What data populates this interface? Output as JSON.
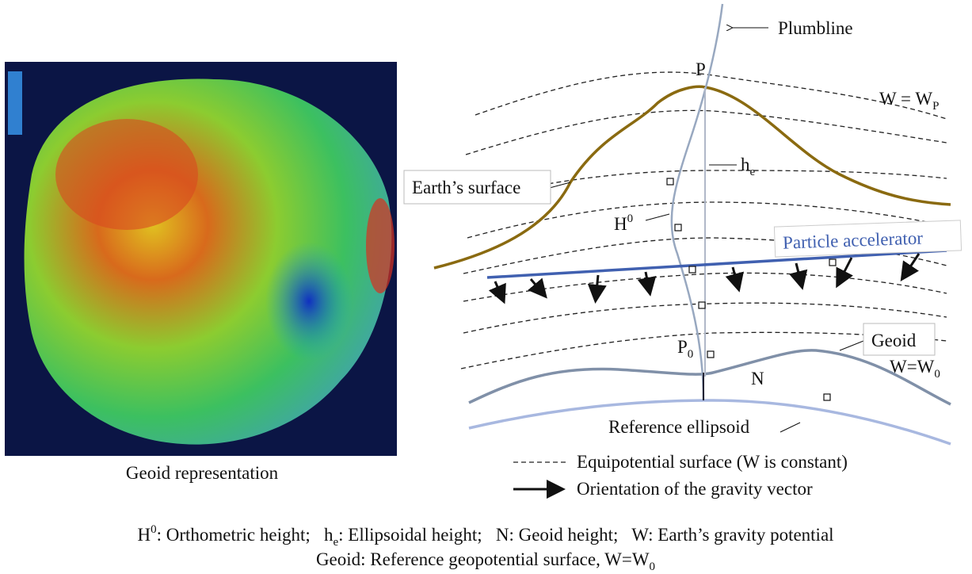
{
  "globe": {
    "caption": "Geoid representation"
  },
  "diagram": {
    "plumbline": "Plumbline",
    "point_p": "P",
    "w_p": {
      "text": "W = W",
      "sub": "P"
    },
    "h_e": {
      "text": "h",
      "sub": "e"
    },
    "earth_surface": "Earth’s surface",
    "h0": {
      "text": "H",
      "sup": "0"
    },
    "particle_accelerator": "Particle accelerator",
    "point_p0": {
      "text": "P",
      "sub": "0"
    },
    "n": "N",
    "geoid": "Geoid",
    "w_0": {
      "text": "W=W",
      "sub": "0"
    },
    "reference_ellipsoid": "Reference ellipsoid"
  },
  "legend": {
    "equipotential": "Equipotential surface (W is constant)",
    "gravity": "Orientation of the gravity vector"
  },
  "footer": {
    "line1": [
      {
        "text": "H"
      },
      {
        "sup": "0"
      },
      {
        "text": ": Orthometric height;   h"
      },
      {
        "sub": "e"
      },
      {
        "text": ": Ellipsoidal height;   N: Geoid height;   W: Earth’s gravity potential"
      }
    ],
    "line2": [
      {
        "text": "Geoid: Reference geopotential surface, W=W"
      },
      {
        "sub": "0"
      }
    ]
  }
}
